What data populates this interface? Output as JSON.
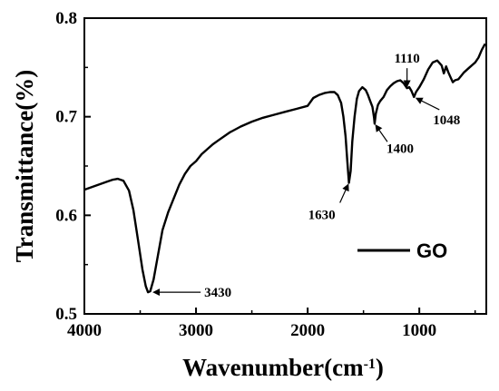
{
  "chart_data": {
    "type": "line",
    "title": "",
    "xlabel": "Wavenumber(cm",
    "xlabel_sup": "-1",
    "xlabel_close": ")",
    "ylabel": "Transmittance(%)",
    "xlim": [
      4000,
      400
    ],
    "ylim": [
      0.5,
      0.8
    ],
    "x_reversed": true,
    "x_ticks": [
      4000,
      3000,
      2000,
      1000
    ],
    "x_tick_labels": [
      "4000",
      "3000",
      "2000",
      "1000"
    ],
    "y_ticks": [
      0.5,
      0.6,
      0.7,
      0.8
    ],
    "y_tick_labels": [
      "0.5",
      "0.6",
      "0.7",
      "0.8"
    ],
    "legend": {
      "position": "lower-right",
      "entries": [
        "GO"
      ]
    },
    "grid": false,
    "series": [
      {
        "name": "GO",
        "color": "#000000",
        "points": [
          [
            4000,
            0.626
          ],
          [
            3900,
            0.63
          ],
          [
            3800,
            0.634
          ],
          [
            3750,
            0.636
          ],
          [
            3700,
            0.637
          ],
          [
            3650,
            0.635
          ],
          [
            3600,
            0.625
          ],
          [
            3560,
            0.605
          ],
          [
            3520,
            0.575
          ],
          [
            3480,
            0.545
          ],
          [
            3450,
            0.528
          ],
          [
            3430,
            0.522
          ],
          [
            3410,
            0.523
          ],
          [
            3380,
            0.535
          ],
          [
            3340,
            0.56
          ],
          [
            3300,
            0.585
          ],
          [
            3250,
            0.603
          ],
          [
            3200,
            0.617
          ],
          [
            3150,
            0.631
          ],
          [
            3100,
            0.642
          ],
          [
            3050,
            0.65
          ],
          [
            3000,
            0.655
          ],
          [
            2950,
            0.662
          ],
          [
            2900,
            0.667
          ],
          [
            2850,
            0.672
          ],
          [
            2800,
            0.676
          ],
          [
            2700,
            0.684
          ],
          [
            2600,
            0.69
          ],
          [
            2500,
            0.695
          ],
          [
            2400,
            0.699
          ],
          [
            2300,
            0.702
          ],
          [
            2200,
            0.705
          ],
          [
            2100,
            0.708
          ],
          [
            2000,
            0.711
          ],
          [
            1950,
            0.719
          ],
          [
            1900,
            0.722
          ],
          [
            1850,
            0.724
          ],
          [
            1800,
            0.725
          ],
          [
            1760,
            0.725
          ],
          [
            1730,
            0.722
          ],
          [
            1700,
            0.714
          ],
          [
            1680,
            0.7
          ],
          [
            1660,
            0.68
          ],
          [
            1645,
            0.655
          ],
          [
            1630,
            0.633
          ],
          [
            1615,
            0.645
          ],
          [
            1600,
            0.675
          ],
          [
            1580,
            0.7
          ],
          [
            1560,
            0.718
          ],
          [
            1540,
            0.726
          ],
          [
            1510,
            0.73
          ],
          [
            1480,
            0.727
          ],
          [
            1460,
            0.722
          ],
          [
            1440,
            0.716
          ],
          [
            1420,
            0.71
          ],
          [
            1405,
            0.699
          ],
          [
            1400,
            0.693
          ],
          [
            1390,
            0.703
          ],
          [
            1370,
            0.712
          ],
          [
            1350,
            0.716
          ],
          [
            1320,
            0.72
          ],
          [
            1290,
            0.727
          ],
          [
            1260,
            0.731
          ],
          [
            1230,
            0.734
          ],
          [
            1200,
            0.736
          ],
          [
            1170,
            0.737
          ],
          [
            1140,
            0.734
          ],
          [
            1110,
            0.729
          ],
          [
            1090,
            0.73
          ],
          [
            1070,
            0.726
          ],
          [
            1048,
            0.72
          ],
          [
            1030,
            0.725
          ],
          [
            1000,
            0.73
          ],
          [
            960,
            0.738
          ],
          [
            920,
            0.748
          ],
          [
            880,
            0.755
          ],
          [
            840,
            0.757
          ],
          [
            800,
            0.752
          ],
          [
            780,
            0.744
          ],
          [
            760,
            0.751
          ],
          [
            740,
            0.745
          ],
          [
            720,
            0.74
          ],
          [
            700,
            0.735
          ],
          [
            680,
            0.737
          ],
          [
            650,
            0.738
          ],
          [
            600,
            0.745
          ],
          [
            550,
            0.75
          ],
          [
            500,
            0.755
          ],
          [
            470,
            0.76
          ],
          [
            440,
            0.768
          ],
          [
            420,
            0.772
          ],
          [
            410,
            0.774
          ]
        ]
      }
    ],
    "annotations": [
      {
        "label": "3430",
        "x": 3430,
        "y": 0.522
      },
      {
        "label": "1630",
        "x": 1630,
        "y": 0.633
      },
      {
        "label": "1400",
        "x": 1400,
        "y": 0.693
      },
      {
        "label": "1110",
        "x": 1110,
        "y": 0.729
      },
      {
        "label": "1048",
        "x": 1048,
        "y": 0.72
      }
    ]
  }
}
